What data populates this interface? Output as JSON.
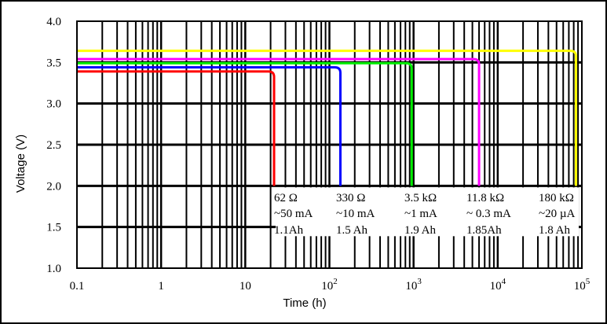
{
  "chart_data": {
    "type": "line",
    "xlabel": "Time (h)",
    "ylabel": "Voltage (V)",
    "x_scale": "log",
    "xlim": [
      0.1,
      100000
    ],
    "ylim": [
      1.0,
      4.0
    ],
    "grid": true,
    "x_tick_labels": [
      {
        "value": 0.1,
        "base": "0.1",
        "exp": ""
      },
      {
        "value": 1,
        "base": "1",
        "exp": ""
      },
      {
        "value": 10,
        "base": "10",
        "exp": ""
      },
      {
        "value": 100,
        "base": "10",
        "exp": "2"
      },
      {
        "value": 1000,
        "base": "10",
        "exp": "3"
      },
      {
        "value": 10000,
        "base": "10",
        "exp": "4"
      },
      {
        "value": 100000,
        "base": "10",
        "exp": "5"
      }
    ],
    "y_tick_labels": [
      "1.0",
      "1.5",
      "2.0",
      "2.5",
      "3.0",
      "3.5",
      "4.0"
    ],
    "series": [
      {
        "color": "#ff0000",
        "plateau_v": 3.39,
        "cutoff_h": 22,
        "end_v": 2.0
      },
      {
        "color": "#0000ff",
        "plateau_v": 3.44,
        "cutoff_h": 135,
        "end_v": 2.0
      },
      {
        "color": "#00ee00",
        "plateau_v": 3.49,
        "cutoff_h": 950,
        "end_v": 2.0
      },
      {
        "color": "#ff00ff",
        "plateau_v": 3.54,
        "cutoff_h": 6000,
        "end_v": 2.0
      },
      {
        "color": "#ffff00",
        "plateau_v": 3.64,
        "cutoff_h": 85000,
        "end_v": 2.0
      }
    ],
    "annotations": [
      {
        "load": "62 Ω",
        "current": "~50 mA",
        "capacity": "1.1Ah"
      },
      {
        "load": "330 Ω",
        "current": "~10 mA",
        "capacity": "1.5 Ah"
      },
      {
        "load": "3.5 kΩ",
        "current": "~1 mA",
        "capacity": "1.9 Ah"
      },
      {
        "load": "11.8 kΩ",
        "current": "~ 0.3 mA",
        "capacity": "1.85Ah"
      },
      {
        "load": "180 kΩ",
        "current": "~20 µA",
        "capacity": "1.8 Ah"
      }
    ]
  }
}
